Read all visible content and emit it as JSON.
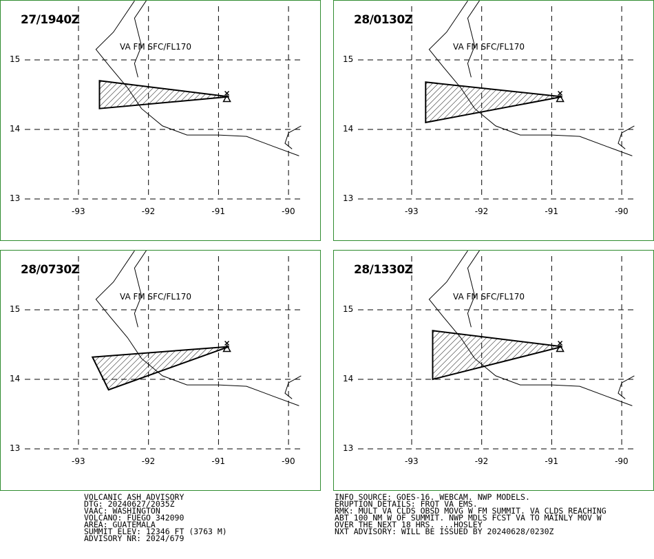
{
  "panels": [
    {
      "time": "27/1940Z",
      "label": "VA FM SFC/FL170",
      "ash_polygon": [
        [
          -92.7,
          14.7
        ],
        [
          -90.85,
          14.47
        ],
        [
          -92.7,
          14.3
        ]
      ]
    },
    {
      "time": "28/0130Z",
      "label": "VA FM SFC/FL170",
      "ash_polygon": [
        [
          -92.8,
          14.68
        ],
        [
          -90.85,
          14.47
        ],
        [
          -92.8,
          14.1
        ]
      ]
    },
    {
      "time": "28/0730Z",
      "label": "VA FM SFC/FL170",
      "ash_polygon": [
        [
          -92.8,
          14.32
        ],
        [
          -90.85,
          14.47
        ],
        [
          -92.57,
          13.85
        ]
      ]
    },
    {
      "time": "28/1330Z",
      "label": "VA FM SFC/FL170",
      "ash_polygon": [
        [
          -92.7,
          14.7
        ],
        [
          -90.85,
          14.47
        ],
        [
          -92.7,
          14.0
        ]
      ]
    }
  ],
  "lat_labels": [
    "15",
    "14",
    "13"
  ],
  "lon_labels": [
    "-93",
    "-92",
    "-91",
    "-90"
  ],
  "volcano": {
    "lon": -90.88,
    "lat": 14.47
  },
  "advisory_left": [
    "VOLCANIC ASH ADVISORY",
    "DTG: 20240627/2035Z",
    "VAAC: WASHINGTON",
    "VOLCANO: FUEGO 342090",
    "AREA: GUATEMALA",
    "SUMMIT ELEV: 12346 FT (3763 M)",
    "ADVISORY NR: 2024/679"
  ],
  "advisory_right": [
    "INFO SOURCE: GOES-16. WEBCAM. NWP MODELS.",
    "ERUPTION DETAILS: FRQT VA EMS.",
    "RMK: MULT VA CLDS OBSD MOVG W FM SUMMIT. VA CLDS REACHING",
    "ABT 100 NM W OF SUMMIT. NWP MDLS FCST VA TO MAINLY MOV W",
    "OVER THE NEXT 18 HRS. ...HOSLEY",
    "NXT ADVISORY: WILL BE ISSUED BY 20240628/0230Z"
  ],
  "colors": {
    "frame": "#2e8b2e",
    "map_lines": "#000000"
  }
}
